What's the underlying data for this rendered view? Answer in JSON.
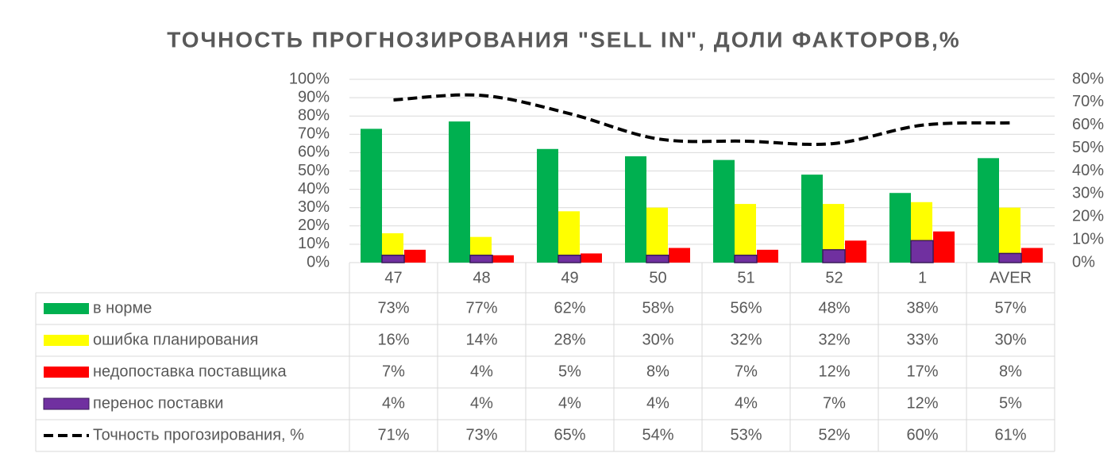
{
  "chart_data": {
    "type": "bar",
    "title": "ТОЧНОСТЬ ПРОГНОЗИРОВАНИЯ \"SELL IN\", ДОЛИ ФАКТОРОВ,%",
    "categories": [
      "47",
      "48",
      "49",
      "50",
      "51",
      "52",
      "1",
      "AVER"
    ],
    "series": [
      {
        "name": "в норме",
        "color": "#00b050",
        "values": [
          73,
          77,
          62,
          58,
          56,
          48,
          38,
          57
        ],
        "value_labels": [
          "73%",
          "77%",
          "62%",
          "58%",
          "56%",
          "48%",
          "38%",
          "57%"
        ]
      },
      {
        "name": "ошибка планирования",
        "color": "#ffff00",
        "values": [
          16,
          14,
          28,
          30,
          32,
          32,
          33,
          30
        ],
        "value_labels": [
          "16%",
          "14%",
          "28%",
          "30%",
          "32%",
          "32%",
          "33%",
          "30%"
        ]
      },
      {
        "name": "недопоставка поставщика",
        "color": "#ff0000",
        "values": [
          7,
          4,
          5,
          8,
          7,
          12,
          17,
          8
        ],
        "value_labels": [
          "7%",
          "4%",
          "5%",
          "8%",
          "7%",
          "12%",
          "17%",
          "8%"
        ]
      },
      {
        "name": "перенос поставки",
        "color": "#7030a0",
        "values": [
          4,
          4,
          4,
          4,
          4,
          7,
          12,
          5
        ],
        "value_labels": [
          "4%",
          "4%",
          "4%",
          "4%",
          "4%",
          "7%",
          "12%",
          "5%"
        ]
      },
      {
        "name": "Точность прогозирования, %",
        "color": "#000000",
        "type": "line",
        "axis": "y2",
        "values": [
          71,
          73,
          65,
          54,
          53,
          52,
          60,
          61
        ],
        "value_labels": [
          "71%",
          "73%",
          "65%",
          "54%",
          "53%",
          "52%",
          "60%",
          "61%"
        ]
      }
    ],
    "ylim": [
      0,
      100
    ],
    "yticks": [
      {
        "value": 0,
        "label": "0%"
      },
      {
        "value": 10,
        "label": "10%"
      },
      {
        "value": 20,
        "label": "20%"
      },
      {
        "value": 30,
        "label": "30%"
      },
      {
        "value": 40,
        "label": "40%"
      },
      {
        "value": 50,
        "label": "50%"
      },
      {
        "value": 60,
        "label": "60%"
      },
      {
        "value": 70,
        "label": "70%"
      },
      {
        "value": 80,
        "label": "80%"
      },
      {
        "value": 90,
        "label": "90%"
      },
      {
        "value": 100,
        "label": "100%"
      }
    ],
    "y2lim": [
      0,
      80
    ],
    "y2ticks": [
      {
        "value": 0,
        "label": "0%"
      },
      {
        "value": 10,
        "label": "10%"
      },
      {
        "value": 20,
        "label": "20%"
      },
      {
        "value": 30,
        "label": "30%"
      },
      {
        "value": 40,
        "label": "40%"
      },
      {
        "value": 50,
        "label": "50%"
      },
      {
        "value": 60,
        "label": "60%"
      },
      {
        "value": 70,
        "label": "70%"
      },
      {
        "value": 80,
        "label": "80%"
      }
    ],
    "grid": true,
    "data_table": true
  }
}
